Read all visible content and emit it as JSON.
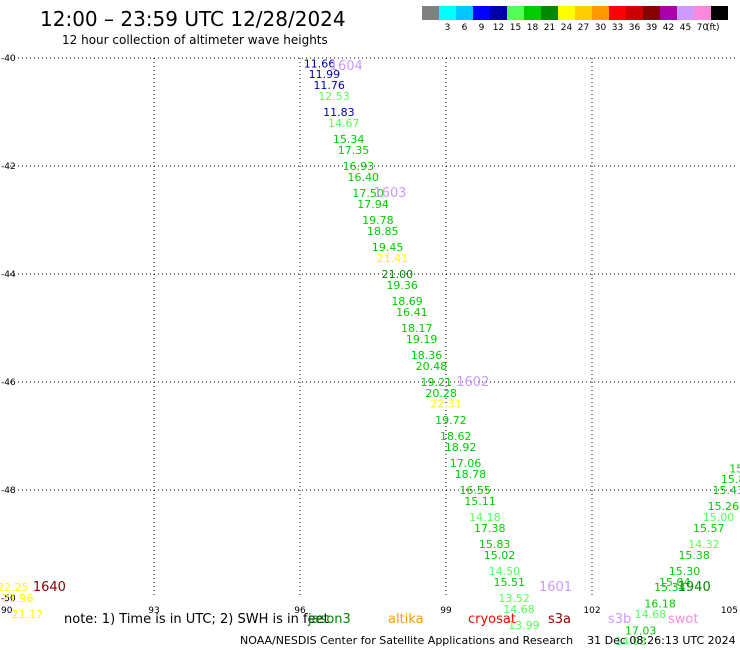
{
  "header": {
    "title": "12:00 – 23:59 UTC 12/28/2024",
    "subtitle": "12 hour collection of altimeter wave heights"
  },
  "colorbar": {
    "units": "(ft)",
    "bins": [
      {
        "color": "#808080",
        "label": ""
      },
      {
        "color": "#00ffff",
        "label": "3"
      },
      {
        "color": "#00c8ff",
        "label": "6"
      },
      {
        "color": "#0000ff",
        "label": "9"
      },
      {
        "color": "#0000aa",
        "label": "12"
      },
      {
        "color": "#55ff55",
        "label": "15"
      },
      {
        "color": "#00cc00",
        "label": "18"
      },
      {
        "color": "#008800",
        "label": "21"
      },
      {
        "color": "#ffff00",
        "label": "24"
      },
      {
        "color": "#ffcc00",
        "label": "27"
      },
      {
        "color": "#ff9900",
        "label": "30"
      },
      {
        "color": "#ff0000",
        "label": "33"
      },
      {
        "color": "#cc0000",
        "label": "36"
      },
      {
        "color": "#880000",
        "label": "39"
      },
      {
        "color": "#aa00aa",
        "label": "42"
      },
      {
        "color": "#cc99ff",
        "label": "45"
      },
      {
        "color": "#ff88dd",
        "label": "70"
      },
      {
        "color": "#000000",
        "label": ""
      }
    ]
  },
  "map": {
    "lon_range": [
      90,
      105
    ],
    "lat_range": [
      -50,
      -40
    ],
    "x_ticks": [
      "90",
      "93",
      "96",
      "99",
      "102",
      "105"
    ],
    "y_ticks": [
      "-40",
      "-42",
      "-44",
      "-46",
      "-48",
      "-50"
    ],
    "grid": true
  },
  "chart_data": {
    "type": "scatter",
    "x_unit": "longitude (deg E)",
    "y_unit": "latitude (deg)",
    "series": [
      {
        "name": "jason3",
        "points": [
          {
            "lon": 96.4,
            "lat": -40.1,
            "text": "11.66",
            "color": "#0000aa"
          },
          {
            "lon": 96.5,
            "lat": -40.3,
            "text": "11.99",
            "color": "#0000aa"
          },
          {
            "lon": 96.6,
            "lat": -40.5,
            "text": "11.76",
            "color": "#0000aa"
          },
          {
            "lon": 96.7,
            "lat": -40.7,
            "text": "12.53",
            "color": "#55ff55"
          },
          {
            "lon": 96.8,
            "lat": -41.0,
            "text": "11.83",
            "color": "#0000aa"
          },
          {
            "lon": 96.9,
            "lat": -41.2,
            "text": "14.67",
            "color": "#55ff55"
          },
          {
            "lon": 97.0,
            "lat": -41.5,
            "text": "15.34",
            "color": "#00cc00"
          },
          {
            "lon": 97.1,
            "lat": -41.7,
            "text": "17.35",
            "color": "#00cc00"
          },
          {
            "lon": 97.2,
            "lat": -42.0,
            "text": "16.93",
            "color": "#00cc00"
          },
          {
            "lon": 97.3,
            "lat": -42.2,
            "text": "16.40",
            "color": "#00cc00"
          },
          {
            "lon": 97.4,
            "lat": -42.5,
            "text": "17.50",
            "color": "#00cc00"
          },
          {
            "lon": 97.5,
            "lat": -42.7,
            "text": "17.94",
            "color": "#00cc00"
          },
          {
            "lon": 97.6,
            "lat": -43.0,
            "text": "19.78",
            "color": "#00cc00"
          },
          {
            "lon": 97.7,
            "lat": -43.2,
            "text": "18.85",
            "color": "#00cc00"
          },
          {
            "lon": 97.8,
            "lat": -43.5,
            "text": "19.45",
            "color": "#00cc00"
          },
          {
            "lon": 97.9,
            "lat": -43.7,
            "text": "21.41",
            "color": "#ffff00"
          },
          {
            "lon": 98.0,
            "lat": -44.0,
            "text": "21.00",
            "color": "#008800"
          },
          {
            "lon": 98.1,
            "lat": -44.2,
            "text": "19.36",
            "color": "#00cc00"
          },
          {
            "lon": 98.2,
            "lat": -44.5,
            "text": "18.69",
            "color": "#00cc00"
          },
          {
            "lon": 98.3,
            "lat": -44.7,
            "text": "16.41",
            "color": "#00cc00"
          },
          {
            "lon": 98.4,
            "lat": -45.0,
            "text": "18.17",
            "color": "#00cc00"
          },
          {
            "lon": 98.5,
            "lat": -45.2,
            "text": "19.19",
            "color": "#00cc00"
          },
          {
            "lon": 98.6,
            "lat": -45.5,
            "text": "18.36",
            "color": "#00cc00"
          },
          {
            "lon": 98.7,
            "lat": -45.7,
            "text": "20.48",
            "color": "#00cc00"
          },
          {
            "lon": 98.8,
            "lat": -46.0,
            "text": "19.21",
            "color": "#00cc00"
          },
          {
            "lon": 98.9,
            "lat": -46.2,
            "text": "20.28",
            "color": "#00cc00"
          },
          {
            "lon": 99.0,
            "lat": -46.4,
            "text": "22.31",
            "color": "#ffff00"
          },
          {
            "lon": 99.1,
            "lat": -46.7,
            "text": "19.72",
            "color": "#00cc00"
          },
          {
            "lon": 99.2,
            "lat": -47.0,
            "text": "18.62",
            "color": "#00cc00"
          },
          {
            "lon": 99.3,
            "lat": -47.2,
            "text": "18.92",
            "color": "#00cc00"
          },
          {
            "lon": 99.4,
            "lat": -47.5,
            "text": "17.06",
            "color": "#00cc00"
          },
          {
            "lon": 99.5,
            "lat": -47.7,
            "text": "18.78",
            "color": "#00cc00"
          },
          {
            "lon": 99.6,
            "lat": -48.0,
            "text": "16.55",
            "color": "#00cc00"
          },
          {
            "lon": 99.7,
            "lat": -48.2,
            "text": "15.11",
            "color": "#00cc00"
          },
          {
            "lon": 99.8,
            "lat": -48.5,
            "text": "14.18",
            "color": "#55ff55"
          },
          {
            "lon": 99.9,
            "lat": -48.7,
            "text": "17.38",
            "color": "#00cc00"
          },
          {
            "lon": 100.0,
            "lat": -49.0,
            "text": "15.83",
            "color": "#00cc00"
          },
          {
            "lon": 100.1,
            "lat": -49.2,
            "text": "15.02",
            "color": "#00cc00"
          },
          {
            "lon": 100.2,
            "lat": -49.5,
            "text": "14.50",
            "color": "#55ff55"
          },
          {
            "lon": 100.3,
            "lat": -49.7,
            "text": "15.51",
            "color": "#00cc00"
          },
          {
            "lon": 100.4,
            "lat": -50.0,
            "text": "13.52",
            "color": "#55ff55"
          },
          {
            "lon": 100.5,
            "lat": -50.2,
            "text": "14.68",
            "color": "#55ff55"
          },
          {
            "lon": 100.6,
            "lat": -50.5,
            "text": "13.99",
            "color": "#55ff55"
          }
        ]
      },
      {
        "name": "altika",
        "points": [
          {
            "lon": 105.0,
            "lat": -47.6,
            "text": "15.",
            "color": "#00cc00"
          },
          {
            "lon": 104.9,
            "lat": -47.8,
            "text": "15.8",
            "color": "#00cc00"
          },
          {
            "lon": 104.8,
            "lat": -48.0,
            "text": "15.43",
            "color": "#00cc00"
          },
          {
            "lon": 104.7,
            "lat": -48.3,
            "text": "15.26",
            "color": "#00cc00"
          },
          {
            "lon": 104.6,
            "lat": -48.5,
            "text": "15.00",
            "color": "#55ff55"
          },
          {
            "lon": 104.4,
            "lat": -48.7,
            "text": "15.57",
            "color": "#00cc00"
          },
          {
            "lon": 104.3,
            "lat": -49.0,
            "text": "14.32",
            "color": "#55ff55"
          },
          {
            "lon": 104.1,
            "lat": -49.2,
            "text": "15.38",
            "color": "#00cc00"
          },
          {
            "lon": 103.9,
            "lat": -49.5,
            "text": "15.30",
            "color": "#00cc00"
          },
          {
            "lon": 103.7,
            "lat": -49.7,
            "text": "15.04",
            "color": "#00cc00"
          },
          {
            "lon": 103.6,
            "lat": -49.8,
            "text": "15.34",
            "color": "#00cc00"
          },
          {
            "lon": 103.4,
            "lat": -50.1,
            "text": "16.18",
            "color": "#00cc00"
          },
          {
            "lon": 103.2,
            "lat": -50.3,
            "text": "14.68",
            "color": "#55ff55"
          },
          {
            "lon": 103.0,
            "lat": -50.6,
            "text": "17.03",
            "color": "#00cc00"
          },
          {
            "lon": 102.8,
            "lat": -50.8,
            "text": "14.93",
            "color": "#55ff55"
          }
        ]
      },
      {
        "name": "west-edge",
        "points": [
          {
            "lon": 90.1,
            "lat": -49.8,
            "text": "22.25",
            "color": "#ffff00"
          },
          {
            "lon": 90.2,
            "lat": -50.0,
            "text": "21.96",
            "color": "#ffff00"
          },
          {
            "lon": 90.4,
            "lat": -50.3,
            "text": "21.17",
            "color": "#ffff00"
          }
        ]
      }
    ],
    "pass_labels": [
      {
        "lon": 96.95,
        "lat": -40.15,
        "text": "1604",
        "color": "#cc99ff"
      },
      {
        "lon": 97.85,
        "lat": -42.5,
        "text": "1603",
        "color": "#cc99ff"
      },
      {
        "lon": 99.55,
        "lat": -46.0,
        "text": "1602",
        "color": "#cc99ff"
      },
      {
        "lon": 101.25,
        "lat": -49.8,
        "text": "1601",
        "color": "#cc99ff"
      },
      {
        "lon": 104.1,
        "lat": -49.8,
        "text": "1940",
        "color": "#008800"
      },
      {
        "lon": 90.85,
        "lat": -49.8,
        "text": "1640",
        "color": "#880000"
      }
    ]
  },
  "legend": {
    "note": "note: 1) Time is in UTC; 2) SWH is in feet",
    "satellites": [
      {
        "name": "jason3",
        "color": "#008800"
      },
      {
        "name": "altika",
        "color": "#ff9900"
      },
      {
        "name": "cryosat",
        "color": "#ff0000"
      },
      {
        "name": "s3a",
        "color": "#880000"
      },
      {
        "name": "s3b",
        "color": "#cc99ff"
      },
      {
        "name": "swot",
        "color": "#ff88dd"
      }
    ]
  },
  "footer": {
    "credit": "NOAA/NESDIS Center for Satellite Applications and Research",
    "timestamp": "31 Dec 08:26:13 UTC 2024"
  }
}
